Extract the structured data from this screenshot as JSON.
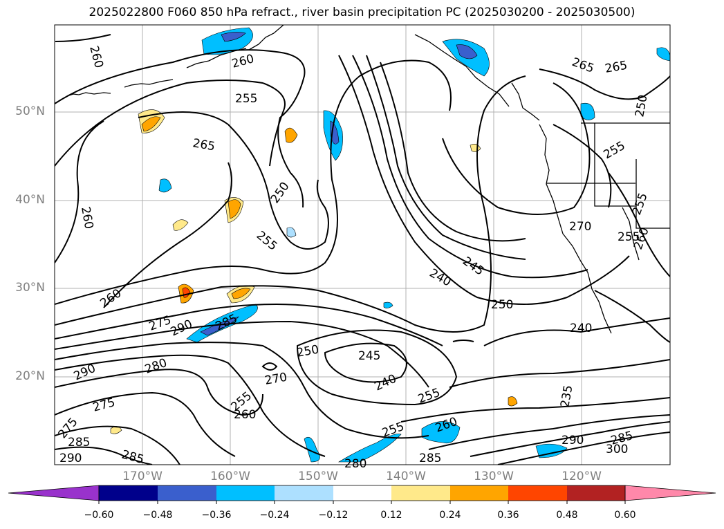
{
  "title": "2025022800 F060 850 hPa refract., river basin precipitation PC (2025030200 - 2025030500)",
  "lat_labels": [
    "50°N",
    "40°N",
    "30°N",
    "20°N"
  ],
  "lon_labels": [
    "170°W",
    "160°W",
    "150°W",
    "140°W",
    "130°W",
    "120°W"
  ],
  "contour_labels": [
    "260",
    "260",
    "255",
    "265",
    "250",
    "255",
    "260",
    "260",
    "275",
    "290",
    "285",
    "280",
    "290",
    "275",
    "275",
    "285",
    "290",
    "285",
    "255",
    "260",
    "270",
    "250",
    "245",
    "240",
    "255",
    "240",
    "245",
    "250",
    "240",
    "235",
    "260",
    "255",
    "285",
    "280",
    "290",
    "300",
    "285",
    "270",
    "255",
    "255",
    "255",
    "260",
    "265",
    "265",
    "250"
  ],
  "colorbar": {
    "ticks": [
      "−0.60",
      "−0.48",
      "−0.36",
      "−0.24",
      "−0.12",
      "0.12",
      "0.24",
      "0.36",
      "0.48",
      "0.60"
    ],
    "colors": [
      "#9932CC",
      "#00008B",
      "#3A5FCD",
      "#00BFFF",
      "#ADE0FF",
      "#FFFFFF",
      "#FFE98A",
      "#FFA500",
      "#FF4500",
      "#B22222",
      "#FF88AA"
    ]
  }
}
